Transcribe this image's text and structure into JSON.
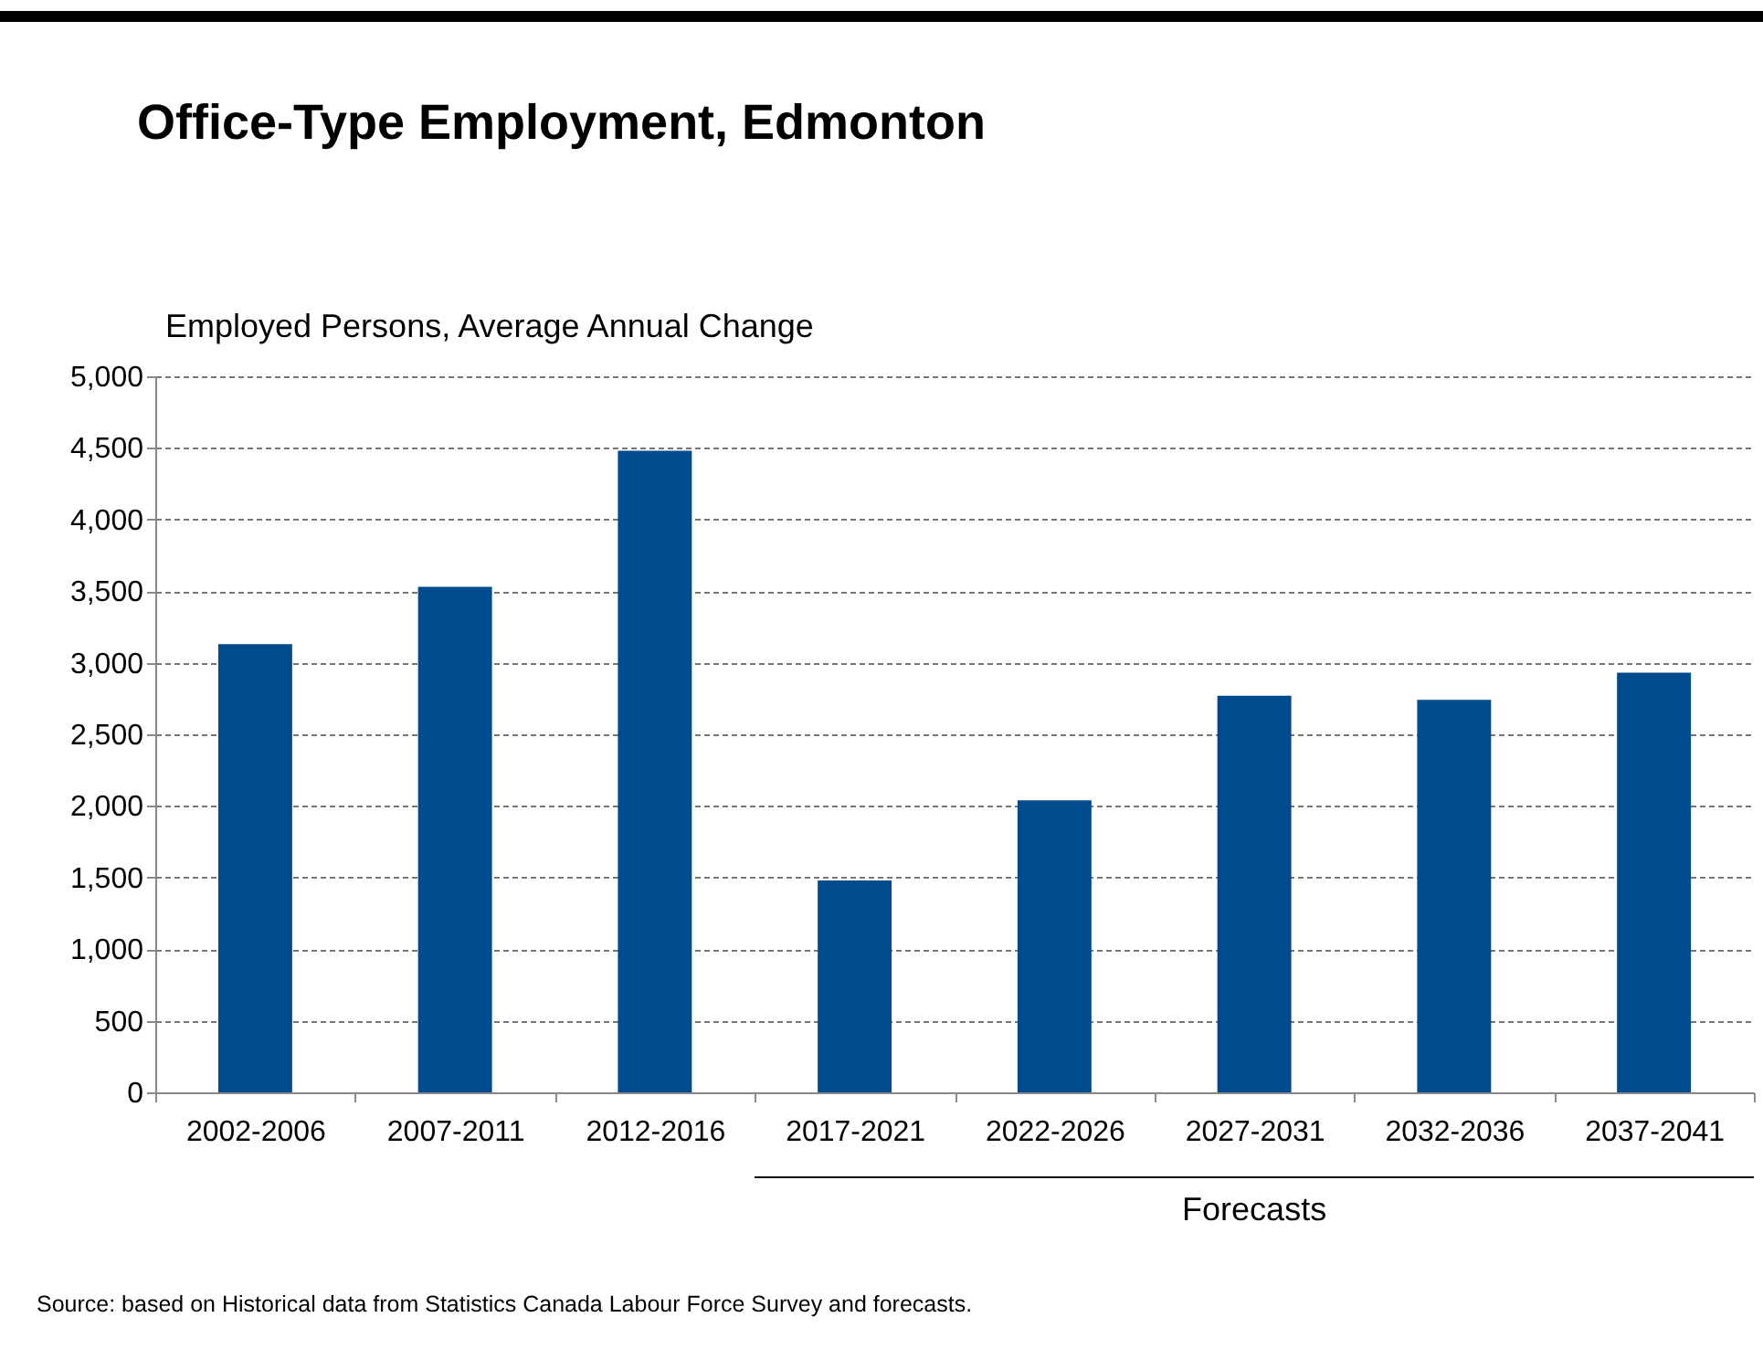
{
  "chart_data": {
    "type": "bar",
    "title": "Office-Type Employment, Edmonton",
    "ylabel": "Employed Persons, Average Annual Change",
    "categories": [
      "2002-2006",
      "2007-2011",
      "2012-2016",
      "2017-2021",
      "2022-2026",
      "2027-2031",
      "2032-2036",
      "2037-2041"
    ],
    "values": [
      3130,
      3530,
      4480,
      1480,
      2040,
      2770,
      2740,
      2930
    ],
    "color": "#004b8d",
    "ylim": [
      0,
      5000
    ],
    "yticks": [
      0,
      500,
      {
        "value": 1000,
        "label": "1,000"
      },
      {
        "value": 1500,
        "label": "1,500"
      },
      {
        "value": 2000,
        "label": "2,000"
      },
      {
        "value": 2500,
        "label": "2,500"
      },
      {
        "value": 3000,
        "label": "3,000"
      },
      {
        "value": 3500,
        "label": "3,500"
      },
      {
        "value": 4000,
        "label": "4,000"
      },
      {
        "value": 4500,
        "label": "4,500"
      },
      {
        "value": 5000,
        "label": "5,000"
      }
    ],
    "grid": "y",
    "annotations": [
      "Forecasts",
      "Source: based on Historical data from Statistics Canada Labour Force Survey and forecasts."
    ]
  }
}
